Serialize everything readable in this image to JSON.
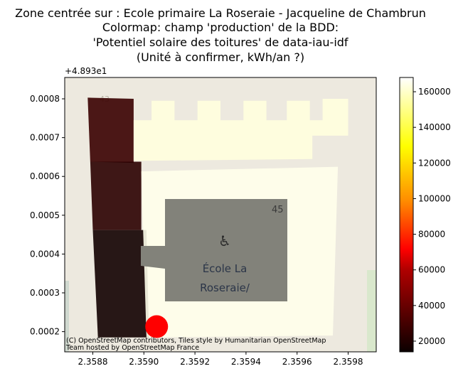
{
  "chart_data": {
    "type": "map-overlay",
    "title": [
      "Zone centrée sur : Ecole primaire La Roseraie - Jacqueline de Chambrun",
      "Colormap: champ 'production' de la BDD:",
      "'Potentiel solaire des toitures' de data-iau-idf",
      "(Unité à confirmer, kWh/an ?)"
    ],
    "y_offset_label": "+4.893e1",
    "x_ticks": [
      2.3588,
      2.359,
      2.3592,
      2.3594,
      2.3596,
      2.3598
    ],
    "x_tick_labels": [
      "2.3588",
      "2.3590",
      "2.3592",
      "2.3594",
      "2.3596",
      "2.3598"
    ],
    "y_ticks": [
      0.0002,
      0.0003,
      0.0004,
      0.0005,
      0.0006,
      0.0007,
      0.0008
    ],
    "y_tick_labels": [
      "0.0002",
      "0.0003",
      "0.0004",
      "0.0005",
      "0.0006",
      "0.0007",
      "0.0008"
    ],
    "xlim": [
      2.35869,
      2.35991
    ],
    "ylim": [
      0.000148,
      0.000855
    ],
    "colorbar": {
      "colormap": "hot",
      "vmin": 14000,
      "vmax": 168000,
      "ticks": [
        20000,
        40000,
        60000,
        80000,
        100000,
        120000,
        140000,
        160000
      ],
      "tick_labels": [
        "20000",
        "40000",
        "60000",
        "80000",
        "100000",
        "120000",
        "140000",
        "160000"
      ]
    },
    "buildings": [
      {
        "name": "top-left",
        "production": 24000,
        "polygon": [
          [
            2.35878,
            0.000803
          ],
          [
            2.35896,
            0.0008
          ],
          [
            2.35896,
            0.000635
          ],
          [
            2.35879,
            0.000638
          ]
        ]
      },
      {
        "name": "mid-left",
        "production": 21000,
        "polygon": [
          [
            2.35879,
            0.000638
          ],
          [
            2.35899,
            0.000638
          ],
          [
            2.35899,
            0.000462
          ],
          [
            2.3588,
            0.000462
          ]
        ]
      },
      {
        "name": "bottom-left",
        "production": 15500,
        "polygon": [
          [
            2.3588,
            0.000462
          ],
          [
            2.35901,
            0.000462
          ],
          [
            2.35902,
            0.000185
          ],
          [
            2.35882,
            0.000185
          ]
        ]
      },
      {
        "name": "school-main",
        "production": 165000,
        "polygon": [
          [
            2.35899,
            0.000613
          ],
          [
            2.35976,
            0.000625
          ],
          [
            2.35974,
            0.00019
          ],
          [
            2.35901,
            0.000185
          ]
        ]
      },
      {
        "name": "school-crenellated",
        "production": 163000,
        "polygon": [
          [
            2.35896,
            0.000745
          ],
          [
            2.35903,
            0.000745
          ],
          [
            2.35903,
            0.000795
          ],
          [
            2.35912,
            0.000795
          ],
          [
            2.35912,
            0.000745
          ],
          [
            2.35921,
            0.000745
          ],
          [
            2.35921,
            0.000795
          ],
          [
            2.3593,
            0.000795
          ],
          [
            2.3593,
            0.000745
          ],
          [
            2.35939,
            0.000745
          ],
          [
            2.35939,
            0.000795
          ],
          [
            2.35948,
            0.000795
          ],
          [
            2.35948,
            0.000745
          ],
          [
            2.35956,
            0.000745
          ],
          [
            2.35956,
            0.000795
          ],
          [
            2.35965,
            0.000795
          ],
          [
            2.35965,
            0.000745
          ],
          [
            2.3597,
            0.000745
          ],
          [
            2.3597,
            0.0008
          ],
          [
            2.3598,
            0.0008
          ],
          [
            2.3598,
            0.000705
          ],
          [
            2.35966,
            0.000705
          ],
          [
            2.35966,
            0.000645
          ],
          [
            2.35896,
            0.00064
          ]
        ]
      }
    ],
    "marker": {
      "x": 2.35905,
      "y": 0.000213,
      "color": "#ff0000"
    },
    "map_labels": {
      "school_name": [
        "École La",
        "Roseraie/"
      ],
      "house_number_a": "45",
      "house_number_b": "43"
    },
    "attribution": [
      "(C) OpenStreetMap contributors, Tiles style by Humanitarian OpenStreetMap",
      "Team hosted by OpenStreetMap France"
    ]
  }
}
